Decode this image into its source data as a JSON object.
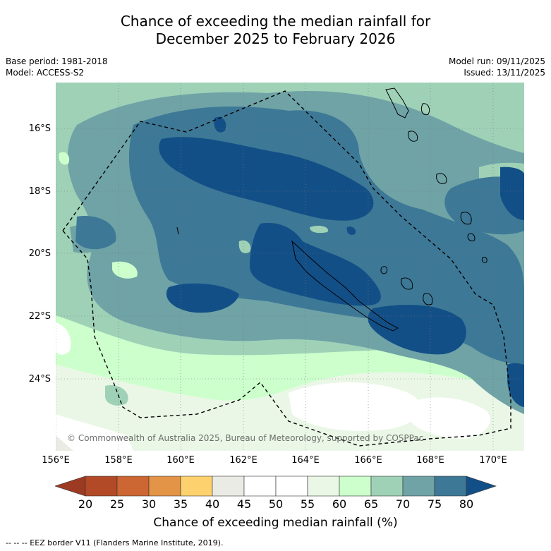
{
  "title_line1": "Chance of exceeding the median rainfall for",
  "title_line2": "December 2025 to February 2026",
  "meta_left": {
    "base_period": "Base period: 1981-2018",
    "model": "Model: ACCESS-S2"
  },
  "meta_right": {
    "model_run": "Model run: 09/11/2025",
    "issued": "Issued: 13/11/2025"
  },
  "y_axis_labels": [
    "16°S",
    "18°S",
    "20°S",
    "22°S",
    "24°S"
  ],
  "x_axis_labels": [
    "156°E",
    "158°E",
    "160°E",
    "162°E",
    "164°E",
    "166°E",
    "168°E",
    "170°E"
  ],
  "copyright": "© Commonwealth of Australia 2025, Bureau of Meteorology, supported by COSPPac",
  "colorbar": {
    "ticks": [
      "20",
      "25",
      "30",
      "35",
      "40",
      "45",
      "50",
      "55",
      "60",
      "65",
      "70",
      "75",
      "80"
    ],
    "label": "Chance of exceeding median rainfall (%)",
    "colors": {
      "below_20": "#9c3a22",
      "c20_25": "#b34a27",
      "c25_30": "#cc6633",
      "c30_35": "#e39447",
      "c35_40": "#fdd26e",
      "c40_45": "#ebebe6",
      "c45_50": "#ffffff",
      "c50_55": "#ffffff",
      "c55_60": "#eaf7e6",
      "c60_65": "#ccffcc",
      "c65_70": "#9fd1b7",
      "c70_75": "#6fa3a6",
      "c75_80": "#3d7896",
      "above_80": "#134f87"
    }
  },
  "footer": "--  --  -- EEZ border V11 (Flanders Marine Institute, 2019)."
}
